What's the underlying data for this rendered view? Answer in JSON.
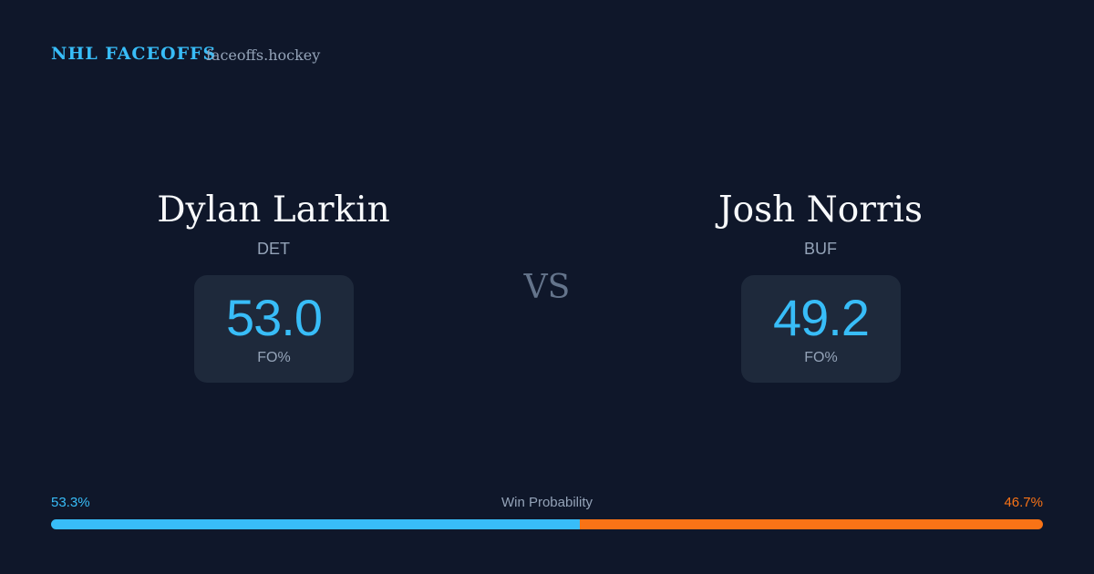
{
  "header": {
    "brand": "NHL FACEOFFS",
    "site": "faceoffs.hockey"
  },
  "players": [
    {
      "name": "Dylan Larkin",
      "team": "DET",
      "stat": "53.0",
      "stat_label": "FO%"
    },
    {
      "name": "Josh Norris",
      "team": "BUF",
      "stat": "49.2",
      "stat_label": "FO%"
    }
  ],
  "versus": "VS",
  "win_probability": {
    "title": "Win Probability",
    "left": {
      "value": 53.3,
      "label": "53.3%"
    },
    "right": {
      "value": 46.7,
      "label": "46.7%"
    }
  }
}
